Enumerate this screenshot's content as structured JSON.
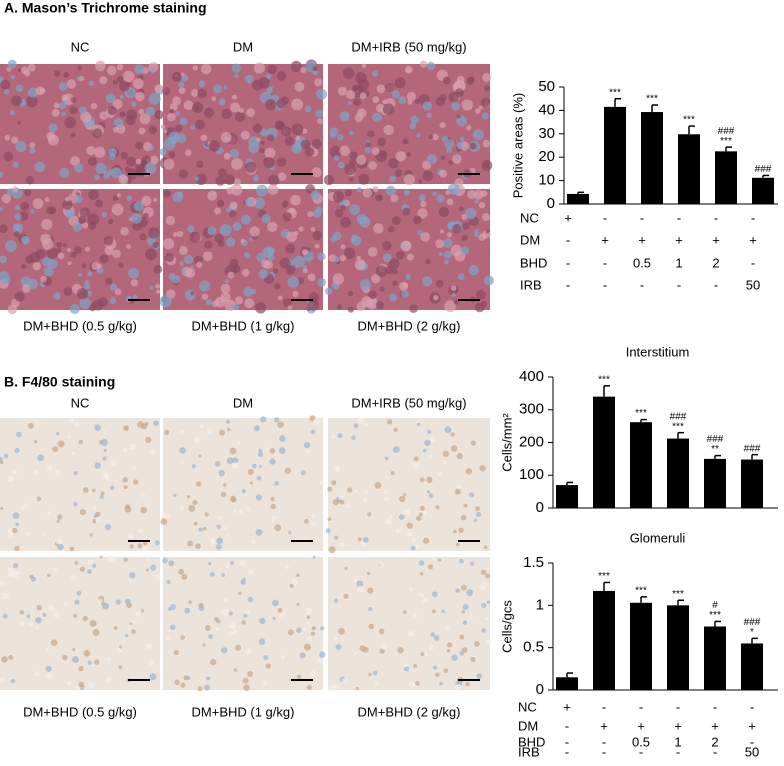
{
  "panels": [
    {
      "title": "A. Mason’s Trichrome staining",
      "image_labels": [
        "NC",
        "DM",
        "DM+IRB (50 mg/kg)",
        "DM+BHD (0.5 g/kg)",
        "DM+BHD (1 g/kg)",
        "DM+BHD (2 g/kg)"
      ],
      "treatment_table": {
        "rows": [
          {
            "label": "NC",
            "cells": [
              "+",
              "-",
              "-",
              "-",
              "-",
              "-"
            ]
          },
          {
            "label": "DM",
            "cells": [
              "-",
              "+",
              "+",
              "+",
              "+",
              "+"
            ]
          },
          {
            "label": "BHD",
            "cells": [
              "-",
              "-",
              "0.5",
              "1",
              "2",
              "-"
            ]
          },
          {
            "label": "IRB",
            "cells": [
              "-",
              "-",
              "-",
              "-",
              "-",
              "50"
            ]
          }
        ]
      }
    },
    {
      "title": "B. F4/80 staining",
      "image_labels": [
        "NC",
        "DM",
        "DM+IRB (50 mg/kg)",
        "DM+BHD (0.5 g/kg)",
        "DM+BHD (1 g/kg)",
        "DM+BHD (2 g/kg)"
      ],
      "treatment_table": {
        "rows": [
          {
            "label": "NC",
            "cells": [
              "+",
              "-",
              "-",
              "-",
              "-",
              "-"
            ]
          },
          {
            "label": "DM",
            "cells": [
              "-",
              "+",
              "+",
              "+",
              "+",
              "+"
            ]
          },
          {
            "label": "BHD",
            "cells": [
              "-",
              "-",
              "0.5",
              "1",
              "2",
              "-"
            ]
          },
          {
            "label": "IRB",
            "cells": [
              "-",
              "-",
              "-",
              "-",
              "-",
              "50"
            ]
          }
        ]
      }
    }
  ],
  "chart_data": [
    {
      "type": "bar",
      "y_label": "Positive areas (%)",
      "color": "#000000",
      "ylim": [
        0,
        50
      ],
      "yticks": [
        0,
        10,
        20,
        30,
        40,
        50
      ],
      "values": [
        4.3,
        41.5,
        39.3,
        29.8,
        22.5,
        11.2
      ],
      "errors": [
        0.7,
        3.5,
        3.0,
        3.5,
        1.8,
        1.0
      ],
      "annotations": [
        null,
        [
          "***"
        ],
        [
          "***"
        ],
        [
          "***"
        ],
        [
          "###",
          "***"
        ],
        [
          "###"
        ]
      ]
    },
    {
      "type": "bar",
      "title": "Interstitium",
      "y_label": "Cells/mm²",
      "color": "#000000",
      "ylim": [
        0,
        400
      ],
      "yticks": [
        0,
        100,
        200,
        300,
        400
      ],
      "values": [
        70,
        340,
        262,
        212,
        150,
        148
      ],
      "errors": [
        8,
        33,
        8,
        18,
        10,
        15
      ],
      "annotations": [
        null,
        [
          "***"
        ],
        [
          "***"
        ],
        [
          "###",
          "***"
        ],
        [
          "###",
          "**"
        ],
        [
          "###"
        ]
      ]
    },
    {
      "type": "bar",
      "title": "Glomeruli",
      "y_label": "Cells/gcs",
      "color": "#000000",
      "ylim": [
        0,
        1.5
      ],
      "yticks": [
        0,
        0.5,
        1,
        1.5
      ],
      "values": [
        0.15,
        1.17,
        1.03,
        1.0,
        0.75,
        0.55
      ],
      "errors": [
        0.05,
        0.1,
        0.07,
        0.06,
        0.06,
        0.06
      ],
      "annotations": [
        null,
        [
          "***"
        ],
        [
          "***"
        ],
        [
          "***"
        ],
        [
          "#",
          "***"
        ],
        [
          "###",
          "*"
        ]
      ]
    }
  ]
}
